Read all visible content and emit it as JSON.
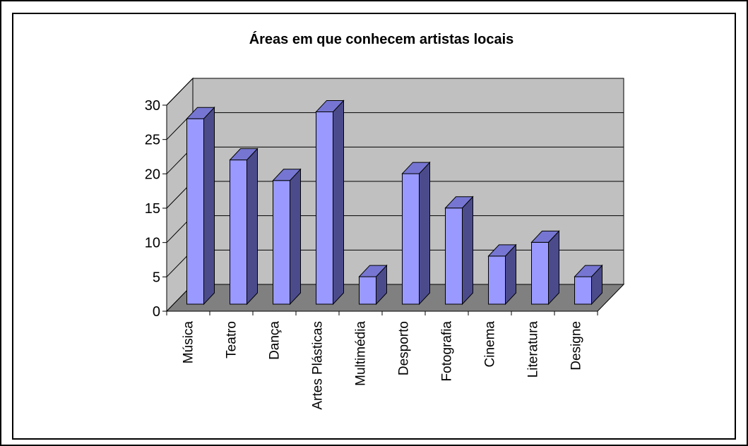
{
  "chart_data": {
    "type": "bar",
    "style": "3d-column",
    "title": "Áreas em que conhecem artistas locais",
    "xlabel": "",
    "ylabel": "",
    "categories": [
      "Música",
      "Teatro",
      "Dança",
      "Artes Plásticas",
      "Multimédia",
      "Desporto",
      "Fotografia",
      "Cinema",
      "Literatura",
      "Designe"
    ],
    "values": [
      27,
      21,
      18,
      28,
      4,
      19,
      14,
      7,
      9,
      4
    ],
    "ylim": [
      0,
      30
    ],
    "yticks": [
      0,
      5,
      10,
      15,
      20,
      25,
      30
    ],
    "grid": true,
    "legend": "none",
    "colors": {
      "bar_front": "#9999ff",
      "bar_side": "#4b4b8c",
      "bar_top": "#7676d2",
      "back_wall": "#c0c0c0",
      "side_wall": "#c0c0c0",
      "floor": "#808080",
      "gridline": "#000000"
    }
  }
}
